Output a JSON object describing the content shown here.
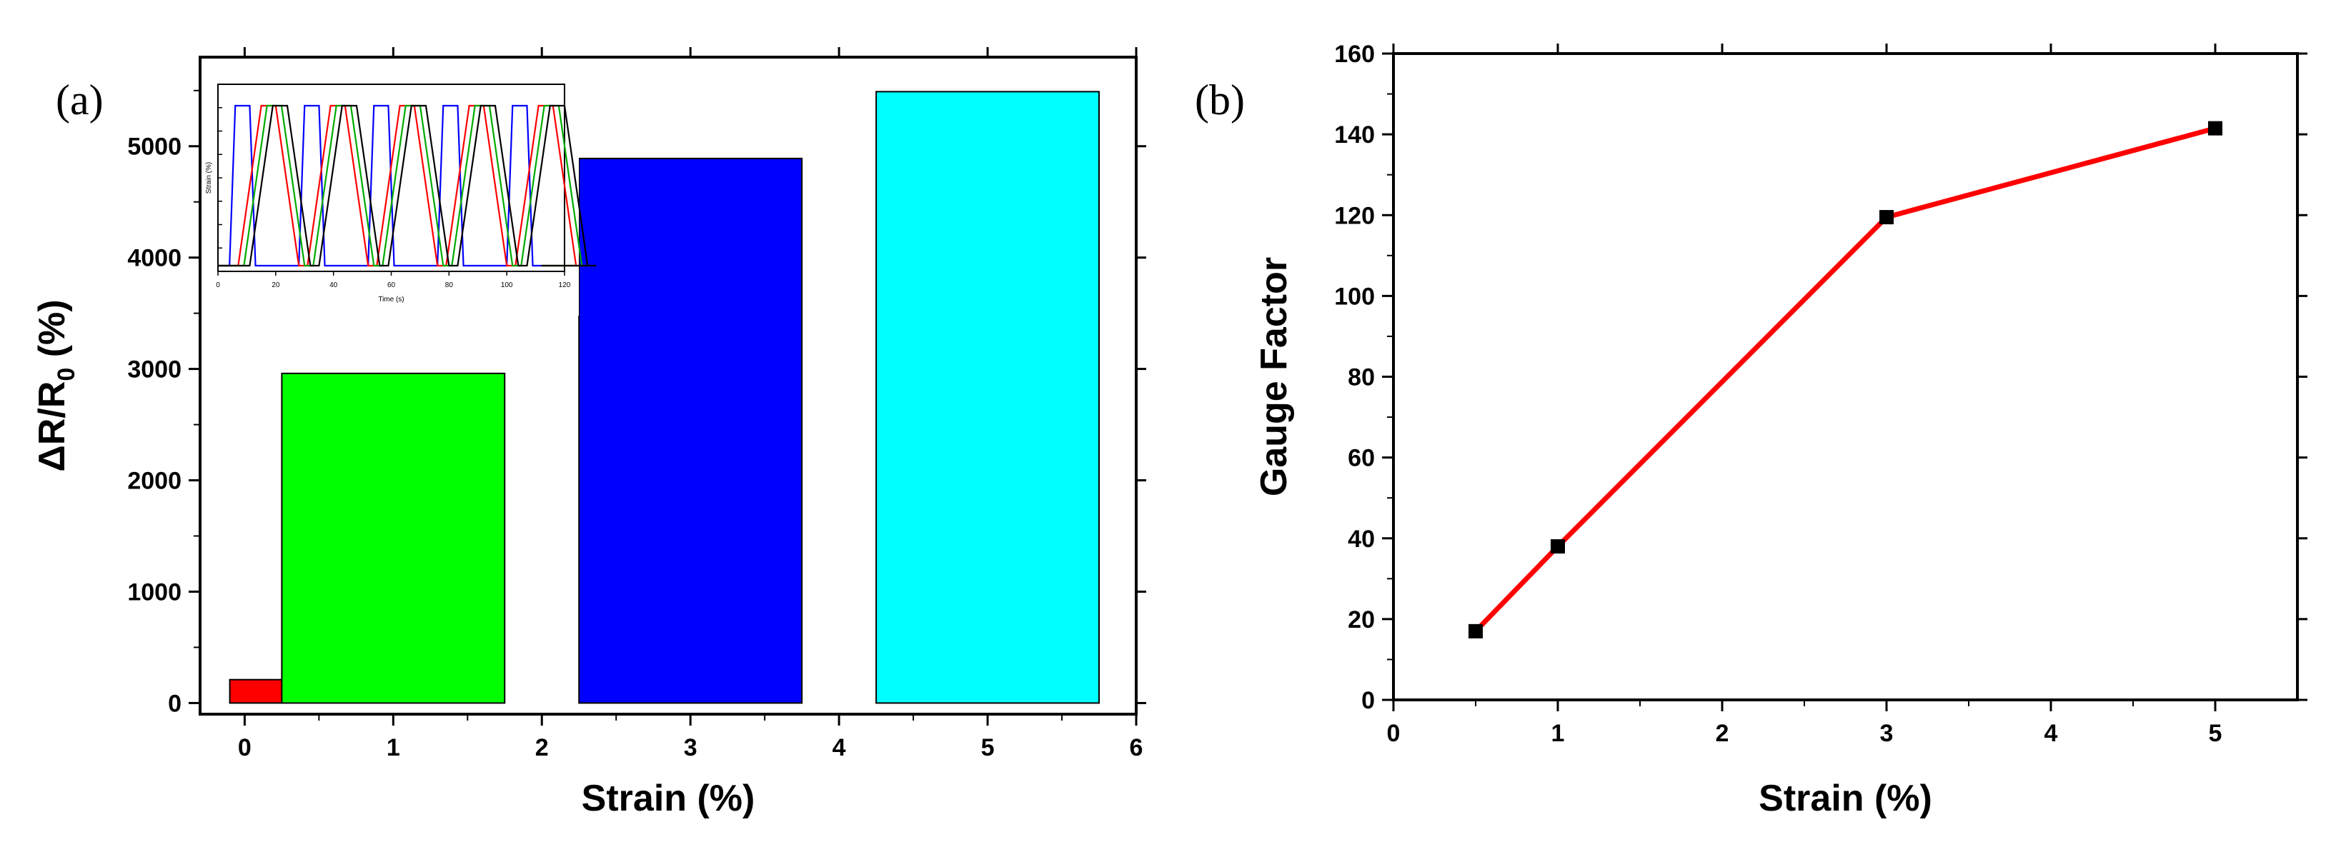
{
  "chart_data": [
    {
      "panel": "(a)",
      "type": "bar",
      "xlabel": "Strain (%)",
      "ylabel": "ΔR/R0 (%)",
      "xlim": [
        -0.3,
        6
      ],
      "ylim": [
        -100,
        5800
      ],
      "xticks": [
        0,
        1,
        2,
        3,
        4,
        5,
        6
      ],
      "yticks": [
        0,
        1000,
        2000,
        3000,
        4000,
        5000
      ],
      "bars": [
        {
          "strain": 0.5,
          "x_from": -0.1,
          "x_to": 0.25,
          "value": 210,
          "color": "#ff0000"
        },
        {
          "strain": 1,
          "x_from": 0.25,
          "x_to": 1.75,
          "value": 2960,
          "color": "#00ff00"
        },
        {
          "strain": 3,
          "x_from": 2.25,
          "x_to": 3.75,
          "value": 4890,
          "color": "#0000ff"
        },
        {
          "strain": 5,
          "x_from": 4.25,
          "x_to": 5.75,
          "value": 5490,
          "color": "#00ffff"
        }
      ],
      "inset": {
        "type": "line",
        "xlabel": "Time (s)",
        "ylabel": "Strain (%)",
        "xlim": [
          0,
          120
        ],
        "xticks": [
          0,
          20,
          40,
          60,
          80,
          100,
          120
        ],
        "series_colors": [
          "#0000ff",
          "#ff0000",
          "#00aa00",
          "#000000"
        ]
      }
    },
    {
      "panel": "(b)",
      "type": "line",
      "xlabel": "Strain (%)",
      "ylabel": "Gauge Factor",
      "xlim": [
        0,
        5.5
      ],
      "ylim": [
        0,
        160
      ],
      "xticks": [
        0,
        1,
        2,
        3,
        4,
        5
      ],
      "yticks": [
        0,
        20,
        40,
        60,
        80,
        100,
        120,
        140,
        160
      ],
      "x": [
        0.5,
        1,
        3,
        5
      ],
      "y": [
        17,
        38,
        119.5,
        141.5
      ],
      "line_color": "#ff0000",
      "marker_color": "#000000"
    }
  ]
}
